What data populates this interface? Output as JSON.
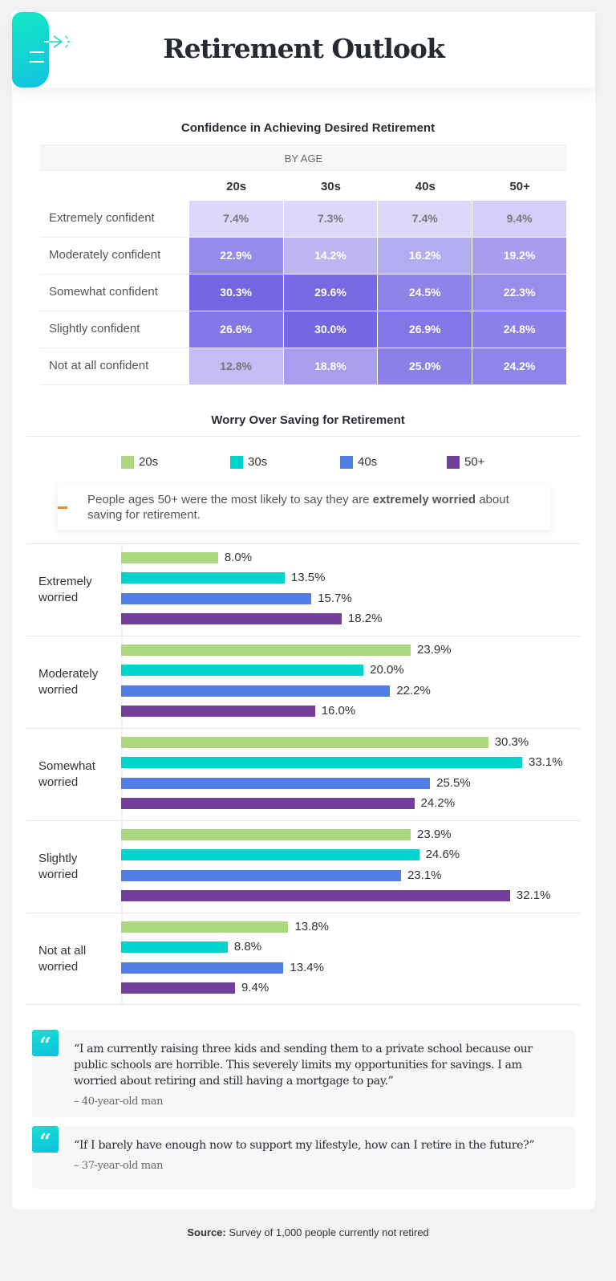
{
  "header": {
    "title": "Retirement Outlook"
  },
  "chart_data": [
    {
      "type": "heatmap",
      "title": "Confidence in Achieving Desired Retirement",
      "group_label": "BY AGE",
      "columns": [
        "20s",
        "30s",
        "40s",
        "50+"
      ],
      "rows": [
        "Extremely confident",
        "Moderately confident",
        "Somewhat confident",
        "Slightly confident",
        "Not at all confident"
      ],
      "values": [
        [
          "7.4%",
          "7.3%",
          "7.4%",
          "9.4%"
        ],
        [
          "22.9%",
          "14.2%",
          "16.2%",
          "19.2%"
        ],
        [
          "30.3%",
          "29.6%",
          "24.5%",
          "22.3%"
        ],
        [
          "26.6%",
          "30.0%",
          "26.9%",
          "24.8%"
        ],
        [
          "12.8%",
          "18.8%",
          "25.0%",
          "24.2%"
        ]
      ]
    },
    {
      "type": "bar",
      "orientation": "horizontal",
      "title": "Worry Over Saving for Retirement",
      "categories": [
        "Extremely worried",
        "Moderately worried",
        "Somewhat worried",
        "Slightly worried",
        "Not at all worried"
      ],
      "series": [
        {
          "name": "20s",
          "color": "#acd882",
          "values": [
            8.0,
            23.9,
            30.3,
            23.9,
            13.8
          ]
        },
        {
          "name": "30s",
          "color": "#00d4cc",
          "values": [
            13.5,
            20.0,
            33.1,
            24.6,
            8.8
          ]
        },
        {
          "name": "40s",
          "color": "#507de6",
          "values": [
            15.7,
            22.2,
            25.5,
            23.1,
            13.4
          ]
        },
        {
          "name": "50+",
          "color": "#743f9a",
          "values": [
            18.2,
            16.0,
            24.2,
            32.1,
            9.4
          ]
        }
      ],
      "xlim": [
        0,
        33.1
      ]
    }
  ],
  "note": {
    "pre": "People ages 50+ were the most likely to say they are ",
    "bold": "extremely worried",
    "post": " about saving for retirement."
  },
  "quotes": [
    {
      "text": "“I am currently raising three kids and sending them to a private school because our public schools are horrible. This severely limits my opportunities for savings. I am worried about retiring and still having a mortgage to pay.”",
      "attribution": "– 40-year-old man"
    },
    {
      "text": "“If I barely have enough now to support my lifestyle, how can I retire in the future?”",
      "attribution": "– 37-year-old man"
    }
  ],
  "source": {
    "label": "Source:",
    "text": " Survey of 1,000 people currently not retired"
  }
}
